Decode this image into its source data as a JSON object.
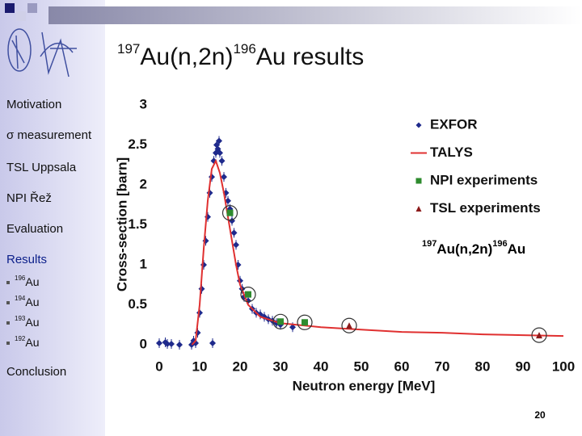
{
  "header": {
    "title": {
      "mass_in": "197",
      "reaction": "Au(n,2n)",
      "mass_out": "196",
      "rest": "Au results"
    }
  },
  "sidebar": {
    "items": [
      "Motivation",
      "σ measurement",
      "TSL Uppsala",
      "NPI Řež",
      "Evaluation",
      "Results"
    ],
    "subitems": [
      {
        "mass": "196",
        "element": "Au"
      },
      {
        "mass": "194",
        "element": "Au"
      },
      {
        "mass": "193",
        "element": "Au"
      },
      {
        "mass": "192",
        "element": "Au"
      }
    ],
    "last": "Conclusion"
  },
  "page_number": "20",
  "chart_data": {
    "type": "scatter",
    "x_label": "Neutron energy [MeV]",
    "y_label": "Cross-section [barn]",
    "annotation": {
      "mass_in": "197",
      "reaction": "Au(n,2n)",
      "mass_out": "196",
      "element": "Au"
    },
    "xlim": [
      0,
      100
    ],
    "xticks": [
      0,
      10,
      20,
      30,
      40,
      50,
      60,
      70,
      80,
      90,
      100
    ],
    "ylim": [
      0,
      3
    ],
    "yticks": [
      0,
      0.5,
      1,
      1.5,
      2,
      2.5,
      3
    ],
    "legend": "upper right",
    "series": [
      {
        "name": "EXFOR",
        "color": "#1f2a8c",
        "marker": "diamond",
        "x": [
          0,
          1.5,
          2,
          3,
          5,
          8,
          8.5,
          9,
          9.5,
          10,
          10.5,
          11,
          11.5,
          12,
          12.5,
          13,
          13.2,
          13.5,
          14,
          14.2,
          14.5,
          14.8,
          15,
          15.5,
          16,
          16.5,
          17,
          17.5,
          18,
          18.5,
          19,
          19.5,
          20,
          20.5,
          21,
          22,
          23,
          24,
          25,
          26,
          27,
          28,
          29,
          30,
          33
        ],
        "values": [
          0.02,
          0.03,
          0.01,
          0.01,
          0.0,
          0.0,
          0.05,
          0.02,
          0.15,
          0.4,
          0.7,
          1.0,
          1.3,
          1.6,
          1.9,
          2.1,
          0.02,
          2.3,
          2.4,
          2.5,
          2.45,
          2.55,
          2.4,
          2.3,
          2.1,
          1.9,
          1.8,
          1.7,
          1.55,
          1.4,
          1.25,
          1.0,
          0.8,
          0.7,
          0.6,
          0.55,
          0.45,
          0.4,
          0.38,
          0.35,
          0.32,
          0.3,
          0.27,
          0.25,
          0.22
        ]
      },
      {
        "name": "TALYS",
        "color": "#e03030",
        "marker": "line",
        "x": [
          8.1,
          9,
          10,
          11,
          12,
          13,
          14,
          15,
          16,
          17,
          18,
          19,
          20,
          22,
          25,
          30,
          40,
          50,
          60,
          70,
          80,
          90,
          100
        ],
        "values": [
          0,
          0.05,
          0.5,
          1.2,
          1.8,
          2.2,
          2.3,
          2.15,
          1.9,
          1.6,
          1.3,
          1.0,
          0.75,
          0.5,
          0.35,
          0.27,
          0.22,
          0.19,
          0.16,
          0.15,
          0.13,
          0.12,
          0.11
        ]
      },
      {
        "name": "NPI experiments",
        "color": "#2e8b2e",
        "marker": "square",
        "circled": true,
        "x": [
          17.5,
          22,
          30,
          36
        ],
        "values": [
          1.65,
          0.63,
          0.29,
          0.28
        ]
      },
      {
        "name": "TSL experiments",
        "color": "#8b1a1a",
        "marker": "triangle",
        "circled": true,
        "x": [
          47,
          94
        ],
        "values": [
          0.24,
          0.12
        ]
      }
    ]
  }
}
